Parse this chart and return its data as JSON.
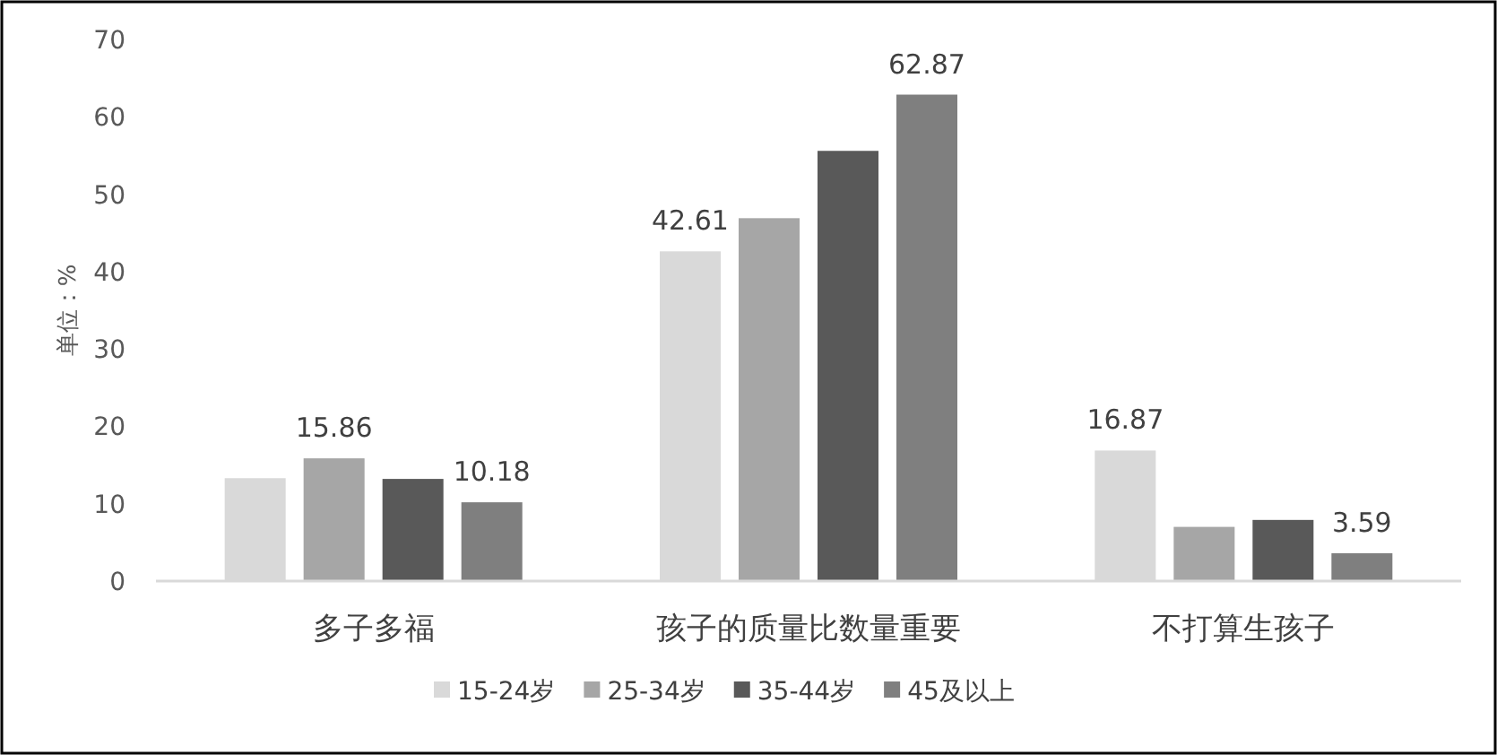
{
  "chart_data": {
    "type": "bar",
    "ylabel": "单位：%",
    "categories": [
      "多子多福",
      "孩子的质量比数量重要",
      "不打算生孩子"
    ],
    "series": [
      {
        "name": "15-24岁",
        "color": "#d9d9d9",
        "values": [
          13.3,
          42.61,
          16.87
        ],
        "value_labels": [
          null,
          "42.61",
          "16.87"
        ]
      },
      {
        "name": "25-34岁",
        "color": "#a6a6a6",
        "values": [
          15.86,
          46.9,
          7.0
        ],
        "value_labels": [
          "15.86",
          null,
          null
        ]
      },
      {
        "name": "35-44岁",
        "color": "#595959",
        "values": [
          13.2,
          55.6,
          7.9
        ]
      },
      {
        "name": "45及以上",
        "color": "#7f7f7f",
        "values": [
          10.18,
          62.87,
          3.59
        ],
        "value_labels": [
          "10.18",
          "62.87",
          "3.59"
        ]
      }
    ],
    "ylim": [
      0,
      70
    ],
    "yticks": [
      0,
      10,
      20,
      30,
      40,
      50,
      60,
      70
    ],
    "grid": false,
    "legend": "bottom"
  }
}
